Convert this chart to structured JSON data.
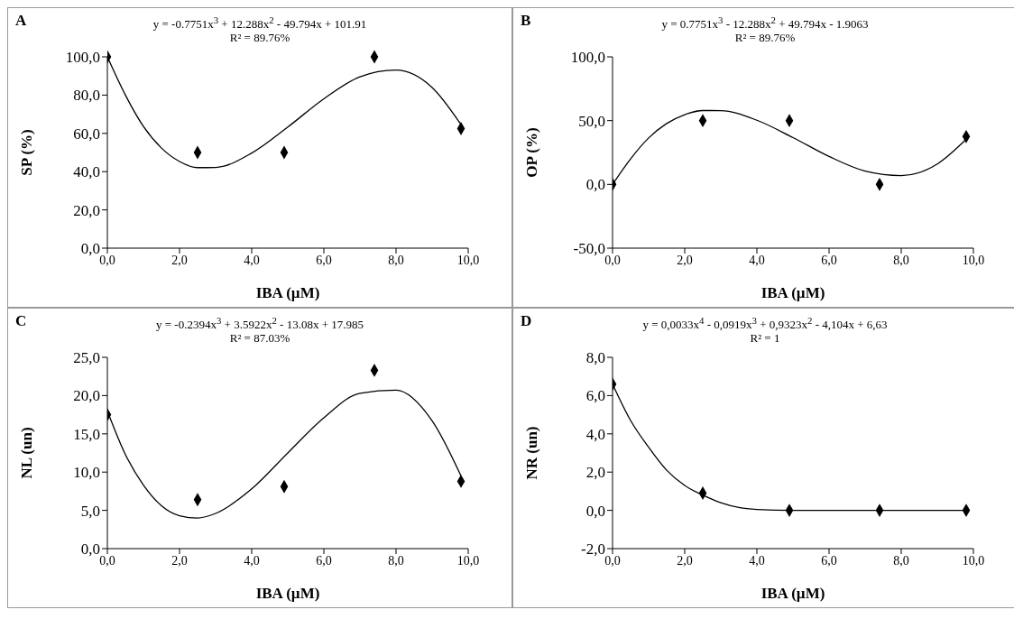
{
  "chart_data": [
    {
      "type": "scatter",
      "title": "y = -0.7751x$^{3}$ + 12.288x$^{2}$ - 49.794x + 101.91",
      "subtitle": "R² = 89.76%",
      "annotations": [
        "A"
      ],
      "xlabel": "IBA (µM)",
      "ylabel": "SP (%)",
      "marker": "diamond",
      "grid": false,
      "xlim": [
        0,
        10
      ],
      "xticks": [
        {
          "value": 0,
          "label": "0,0"
        },
        {
          "value": 2,
          "label": "2,0"
        },
        {
          "value": 4,
          "label": "4,0"
        },
        {
          "value": 6,
          "label": "6,0"
        },
        {
          "value": 8,
          "label": "8,0"
        },
        {
          "value": 10,
          "label": "10,0"
        }
      ],
      "ylim": [
        0,
        100
      ],
      "yticks": [
        {
          "value": 0,
          "label": "0,0"
        },
        {
          "value": 20,
          "label": "20,0"
        },
        {
          "value": 40,
          "label": "40,0"
        },
        {
          "value": 60,
          "label": "60,0"
        },
        {
          "value": 80,
          "label": "80,0"
        },
        {
          "value": 100,
          "label": "100,0"
        }
      ],
      "series": [
        {
          "color": "#000000",
          "x": [
            0,
            2.5,
            4.9,
            7.4,
            9.8
          ],
          "values": [
            100,
            50,
            50,
            100,
            62.5
          ]
        },
        {
          "type": "line",
          "color": "#000000",
          "marker": "none",
          "line_style": "solid",
          "x": [
            0,
            0.5,
            1,
            1.5,
            2,
            2.5,
            3,
            4,
            5,
            6,
            7,
            8,
            9,
            9.8
          ],
          "values": [
            100,
            80.0,
            63.6,
            52.3,
            45.3,
            42.1,
            42.2,
            49.7,
            63.3,
            78.1,
            89.6,
            93.1,
            84.0,
            64.6
          ]
        }
      ]
    },
    {
      "type": "scatter",
      "title": "y = 0.7751x$^{3}$ - 12.288x$^{2}$ + 49.794x - 1.9063",
      "subtitle": "R² = 89.76%",
      "annotations": [
        "B"
      ],
      "xlabel": "IBA (µM)",
      "ylabel": "OP (%)",
      "marker": "diamond",
      "grid": false,
      "xlim": [
        0,
        10
      ],
      "xticks": [
        {
          "value": 0,
          "label": "0,0"
        },
        {
          "value": 2,
          "label": "2,0"
        },
        {
          "value": 4,
          "label": "4,0"
        },
        {
          "value": 6,
          "label": "6,0"
        },
        {
          "value": 8,
          "label": "8,0"
        },
        {
          "value": 10,
          "label": "10,0"
        }
      ],
      "ylim": [
        -50,
        100
      ],
      "yticks": [
        {
          "value": -50,
          "label": "-50,0"
        },
        {
          "value": 0,
          "label": "0,0"
        },
        {
          "value": 50,
          "label": "50,0"
        },
        {
          "value": 100,
          "label": "100,0"
        }
      ],
      "series": [
        {
          "color": "#000000",
          "x": [
            0,
            2.5,
            4.9,
            7.4,
            9.8
          ],
          "values": [
            0,
            50,
            50,
            0,
            37.5
          ]
        },
        {
          "type": "line",
          "color": "#000000",
          "marker": "none",
          "line_style": "solid",
          "x": [
            0,
            0.5,
            1,
            1.5,
            2,
            2.5,
            3,
            4,
            5,
            6,
            7,
            8,
            9,
            9.8
          ],
          "values": [
            0,
            20.0,
            36.4,
            47.7,
            54.7,
            57.9,
            57.8,
            50.3,
            36.7,
            21.9,
            10.4,
            6.9,
            16.0,
            35.4
          ]
        }
      ]
    },
    {
      "type": "scatter",
      "title": "y = -0.2394x$^{3}$ + 3.5922x$^{2}$ - 13.08x + 17.985",
      "subtitle": "R² = 87.03%",
      "annotations": [
        "C"
      ],
      "xlabel": "IBA (µM)",
      "ylabel": "NL (un)",
      "marker": "diamond",
      "grid": false,
      "xlim": [
        0,
        10
      ],
      "xticks": [
        {
          "value": 0,
          "label": "0,0"
        },
        {
          "value": 2,
          "label": "2,0"
        },
        {
          "value": 4,
          "label": "4,0"
        },
        {
          "value": 6,
          "label": "6,0"
        },
        {
          "value": 8,
          "label": "8,0"
        },
        {
          "value": 10,
          "label": "10,0"
        }
      ],
      "ylim": [
        0,
        25
      ],
      "yticks": [
        {
          "value": 0,
          "label": "0,0"
        },
        {
          "value": 5,
          "label": "5,0"
        },
        {
          "value": 10,
          "label": "10,0"
        },
        {
          "value": 15,
          "label": "15,0"
        },
        {
          "value": 20,
          "label": "20,0"
        },
        {
          "value": 25,
          "label": "25,0"
        }
      ],
      "series": [
        {
          "color": "#000000",
          "x": [
            0,
            2.5,
            4.9,
            7.4,
            9.8
          ],
          "values": [
            17.5,
            6.4,
            8.1,
            23.3,
            8.8
          ]
        },
        {
          "type": "line",
          "color": "#000000",
          "marker": "none",
          "line_style": "solid",
          "x": [
            0,
            0.5,
            1,
            1.5,
            2,
            2.5,
            3,
            4,
            5,
            6,
            7,
            8,
            9,
            9.8
          ],
          "values": [
            18.0,
            12.3,
            8.3,
            5.6,
            4.3,
            4.0,
            4.6,
            7.8,
            12.5,
            17.1,
            20.3,
            20.7,
            16.7,
            9.5
          ]
        }
      ]
    },
    {
      "type": "scatter",
      "title": "y = 0,0033x$^{4}$ - 0,0919x$^{3}$ + 0,9323x$^{2}$ - 4,104x + 6,63",
      "subtitle": "R² = 1",
      "annotations": [
        "D"
      ],
      "xlabel": "IBA (µM)",
      "ylabel": "NR (un)",
      "marker": "diamond",
      "grid": false,
      "xlim": [
        0,
        10
      ],
      "xticks": [
        {
          "value": 0,
          "label": "0,0"
        },
        {
          "value": 2,
          "label": "2,0"
        },
        {
          "value": 4,
          "label": "4,0"
        },
        {
          "value": 6,
          "label": "6,0"
        },
        {
          "value": 8,
          "label": "8,0"
        },
        {
          "value": 10,
          "label": "10,0"
        }
      ],
      "ylim": [
        -2,
        8
      ],
      "yticks": [
        {
          "value": -2,
          "label": "-2,0"
        },
        {
          "value": 0,
          "label": "0,0"
        },
        {
          "value": 2,
          "label": "2,0"
        },
        {
          "value": 4,
          "label": "4,0"
        },
        {
          "value": 6,
          "label": "6,0"
        },
        {
          "value": 8,
          "label": "8,0"
        }
      ],
      "series": [
        {
          "color": "#000000",
          "x": [
            0,
            2.5,
            4.9,
            7.4,
            9.8
          ],
          "values": [
            6.6,
            0.9,
            0,
            0,
            0
          ]
        },
        {
          "type": "line",
          "color": "#000000",
          "marker": "none",
          "line_style": "solid",
          "x": [
            0,
            0.5,
            1,
            1.5,
            2,
            2.5,
            3,
            3.5,
            4,
            5,
            6,
            7,
            8,
            9,
            9.8
          ],
          "values": [
            6.6,
            4.7,
            3.3,
            2.1,
            1.3,
            0.8,
            0.4,
            0.15,
            0.05,
            0,
            0,
            0,
            0,
            0,
            0
          ]
        }
      ]
    }
  ]
}
